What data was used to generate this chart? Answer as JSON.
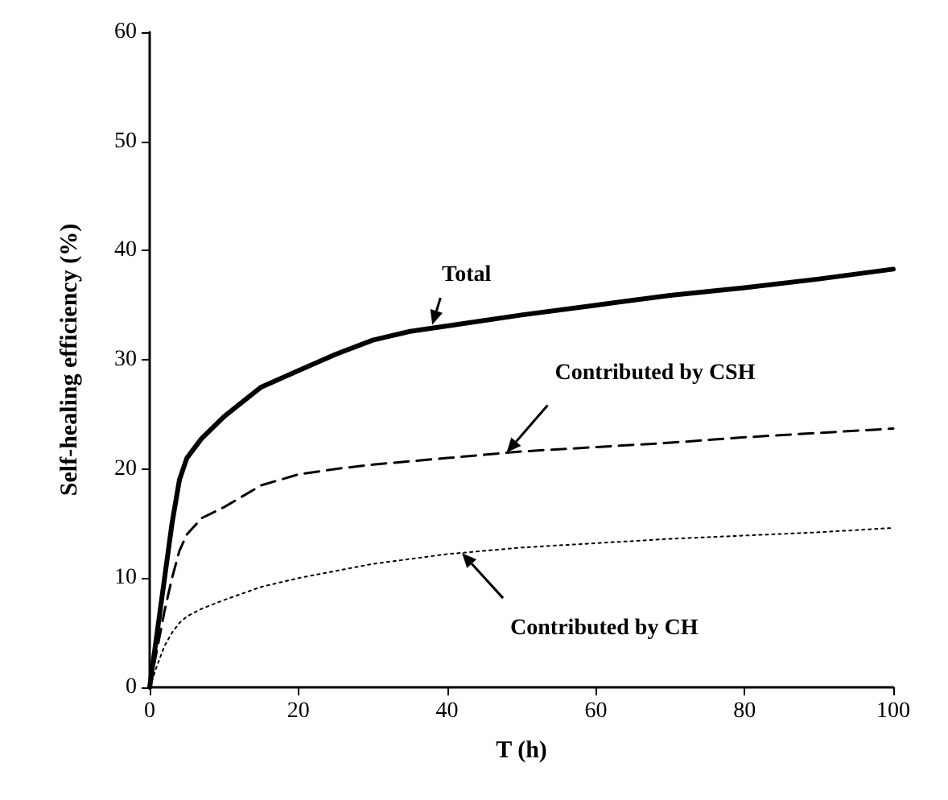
{
  "chart_data": {
    "type": "line",
    "xlabel": "T (h)",
    "ylabel": "Self-healing efficiency (%)",
    "xlim": [
      0,
      100
    ],
    "ylim": [
      0,
      60
    ],
    "xticks": [
      0,
      20,
      40,
      60,
      80,
      100
    ],
    "yticks": [
      0,
      10,
      20,
      30,
      40,
      50,
      60
    ],
    "grid": false,
    "marker": "none",
    "series": [
      {
        "color": "#000000",
        "line_style": "solid",
        "x": [
          0,
          1,
          2,
          3,
          4,
          5,
          7,
          10,
          15,
          20,
          25,
          30,
          35,
          40,
          50,
          60,
          70,
          80,
          90,
          100
        ],
        "values": [
          0,
          5,
          10,
          15,
          19,
          21,
          22.8,
          24.8,
          27.5,
          29,
          30.5,
          31.8,
          32.6,
          33.1,
          34.1,
          35,
          35.9,
          36.6,
          37.4,
          38.3
        ]
      },
      {
        "color": "#000000",
        "line_style": "dashed",
        "x": [
          0,
          1,
          2,
          3,
          4,
          5,
          7,
          10,
          15,
          20,
          25,
          30,
          40,
          50,
          60,
          70,
          80,
          90,
          100
        ],
        "values": [
          0,
          3.5,
          7,
          10,
          12.5,
          14,
          15.5,
          16.5,
          18.5,
          19.5,
          20,
          20.4,
          21,
          21.6,
          22,
          22.4,
          22.9,
          23.3,
          23.7
        ]
      },
      {
        "color": "#000000",
        "line_style": "dotted",
        "x": [
          0,
          1,
          2,
          3,
          4,
          5,
          7,
          10,
          15,
          20,
          30,
          40,
          50,
          60,
          70,
          80,
          90,
          100
        ],
        "values": [
          0,
          2,
          3.8,
          5,
          5.9,
          6.5,
          7.2,
          8,
          9.2,
          10,
          11.3,
          12.2,
          12.8,
          13.2,
          13.6,
          13.9,
          14.2,
          14.6
        ]
      }
    ],
    "annotations": [
      {
        "text": "Total",
        "x": 38,
        "y": 33.2
      },
      {
        "text": "Contributed by CSH",
        "x": 48,
        "y": 21.5
      },
      {
        "text": "Contributed by CH",
        "x": 42,
        "y": 12.3
      }
    ]
  }
}
